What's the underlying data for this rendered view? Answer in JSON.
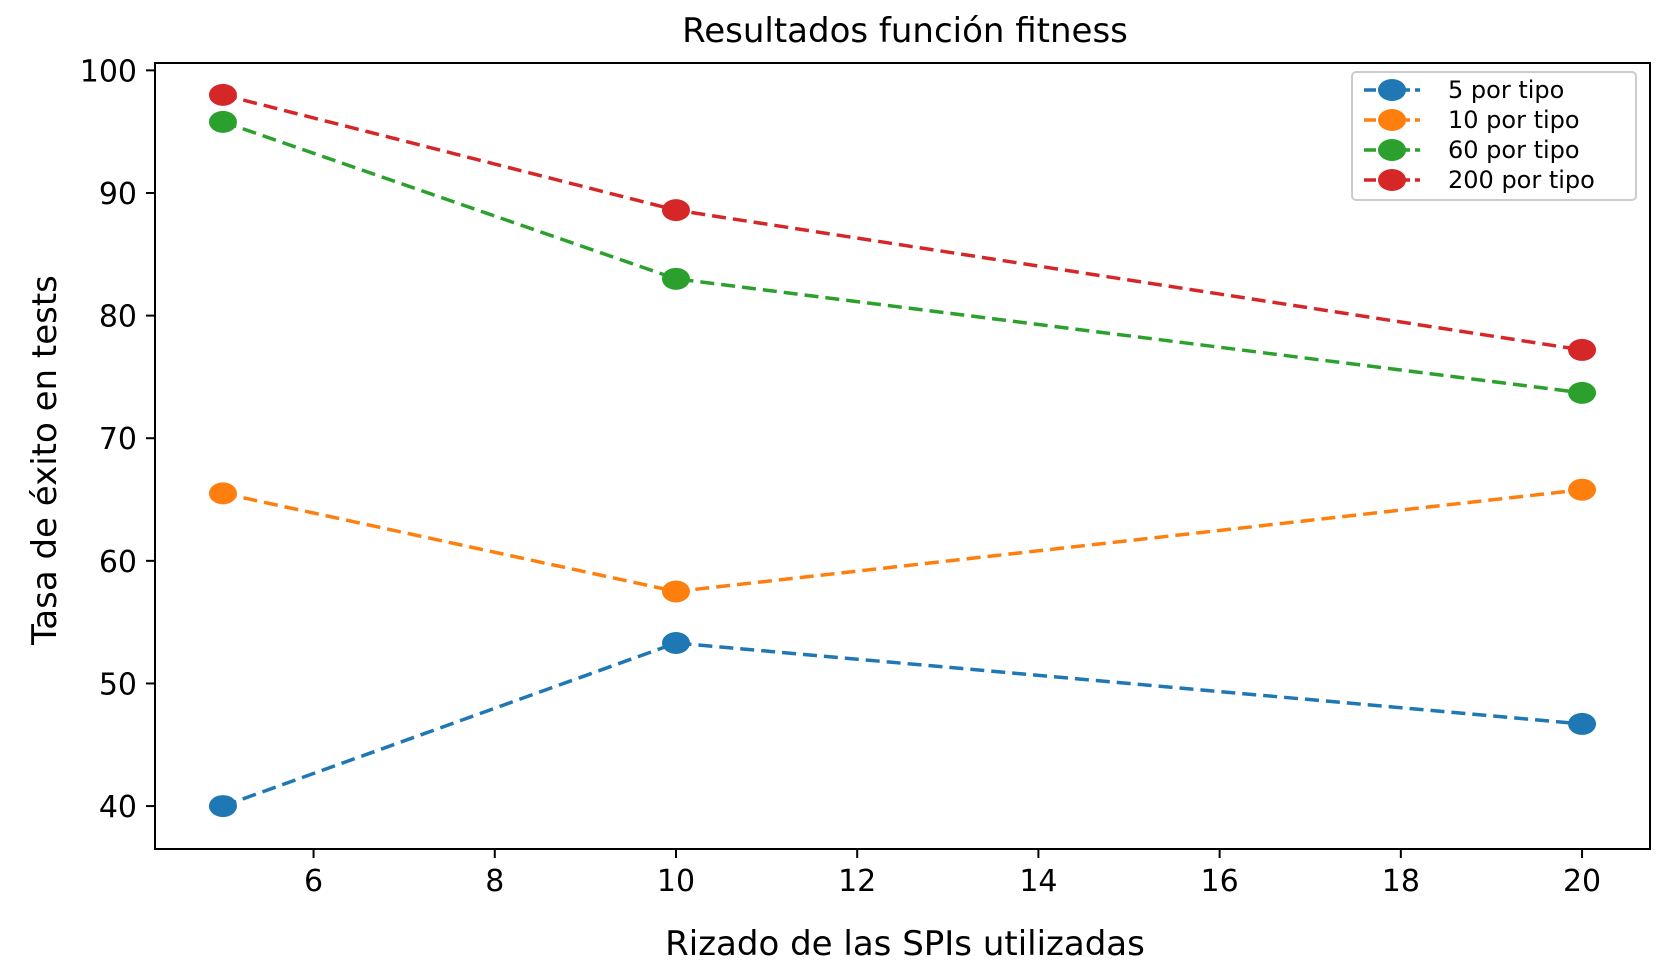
{
  "chart_data": {
    "type": "line",
    "title": "Resultados función fitness",
    "xlabel": "Rizado de las SPIs utilizadas",
    "ylabel": "Tasa de éxito en tests",
    "x": [
      5,
      10,
      20
    ],
    "xlim": [
      4.25,
      20.75
    ],
    "ylim": [
      36.5,
      100.6
    ],
    "xticks": [
      6,
      8,
      10,
      12,
      14,
      16,
      18,
      20
    ],
    "yticks": [
      40,
      50,
      60,
      70,
      80,
      90,
      100
    ],
    "legend_position": "upper right",
    "line_style": "dashed",
    "marker": "circle",
    "series": [
      {
        "name": "5 por tipo",
        "color": "#1f77b4",
        "values": [
          40.0,
          53.3,
          46.7
        ]
      },
      {
        "name": "10 por tipo",
        "color": "#ff7f0e",
        "values": [
          65.5,
          57.5,
          65.8
        ]
      },
      {
        "name": "60 por tipo",
        "color": "#2ca02c",
        "values": [
          95.8,
          83.0,
          73.7
        ]
      },
      {
        "name": "200 por tipo",
        "color": "#d62728",
        "values": [
          98.0,
          88.6,
          77.2
        ]
      }
    ]
  }
}
